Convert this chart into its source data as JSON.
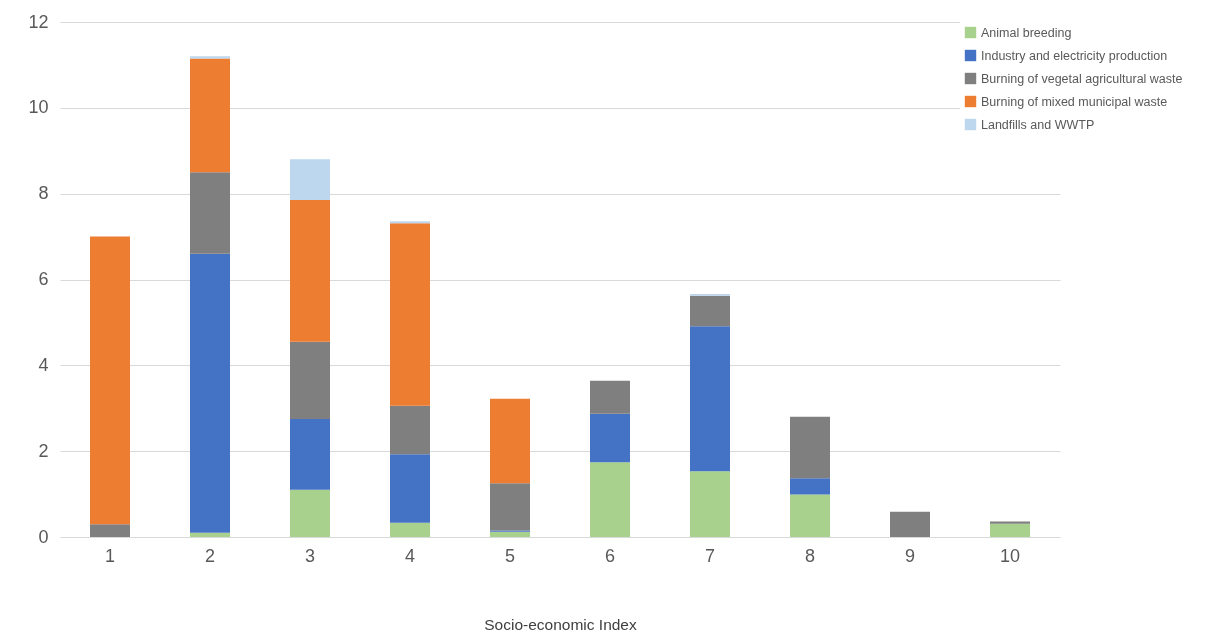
{
  "chart_data": {
    "type": "bar",
    "stacked": true,
    "xlabel": "Socio-economic Index",
    "categories": [
      "1",
      "2",
      "3",
      "4",
      "5",
      "6",
      "7",
      "8",
      "9",
      "10"
    ],
    "series": [
      {
        "name": "Animal breeding",
        "color": "#a9d18e",
        "values": [
          0,
          0.1,
          1.1,
          0.33,
          0.12,
          1.74,
          1.53,
          0.99,
          0,
          0.31
        ]
      },
      {
        "name": "Industry and electricity production",
        "color": "#4472c4",
        "values": [
          0,
          6.5,
          1.65,
          1.6,
          0.03,
          1.13,
          3.38,
          0.38,
          0,
          0
        ]
      },
      {
        "name": "Burning of vegetal agricultural waste",
        "color": "#7f7f7f",
        "values": [
          0.3,
          1.9,
          1.8,
          1.13,
          1.1,
          0.77,
          0.71,
          1.43,
          0.59,
          0.05
        ]
      },
      {
        "name": "Burning of mixed municipal waste",
        "color": "#ed7d31",
        "values": [
          6.7,
          2.65,
          3.3,
          4.25,
          1.97,
          0,
          0,
          0,
          0,
          0
        ]
      },
      {
        "name": "Landfills and WWTP",
        "color": "#bdd7ee",
        "values": [
          0,
          0.05,
          0.95,
          0.05,
          0,
          0,
          0.04,
          0,
          0,
          0
        ]
      }
    ],
    "ylim": [
      0,
      12
    ],
    "yticks": [
      0,
      2,
      4,
      6,
      8,
      10,
      12
    ],
    "grid": "y",
    "legend": "top right"
  }
}
